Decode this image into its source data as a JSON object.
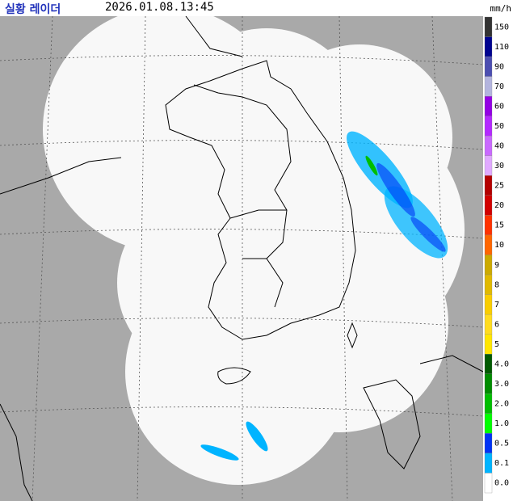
{
  "header": {
    "title": "실황 레이더",
    "time": "2026.01.08.13:45",
    "unit": "mm/h"
  },
  "legend": [
    {
      "label": "150",
      "color": "#333333"
    },
    {
      "label": "110",
      "color": "#000390"
    },
    {
      "label": "90",
      "color": "#4c4eb1"
    },
    {
      "label": "70",
      "color": "#b3b4de"
    },
    {
      "label": "60",
      "color": "#9300e4"
    },
    {
      "label": "50",
      "color": "#b329ff"
    },
    {
      "label": "40",
      "color": "#c969ff"
    },
    {
      "label": "30",
      "color": "#e0a9ff"
    },
    {
      "label": "25",
      "color": "#b40000"
    },
    {
      "label": "20",
      "color": "#d20000"
    },
    {
      "label": "15",
      "color": "#ff3200"
    },
    {
      "label": "10",
      "color": "#ff6600"
    },
    {
      "label": "9",
      "color": "#ccaa00"
    },
    {
      "label": "8",
      "color": "#e0b900"
    },
    {
      "label": "7",
      "color": "#f9cd00"
    },
    {
      "label": "6",
      "color": "#ffdc1f"
    },
    {
      "label": "5",
      "color": "#ffe600"
    },
    {
      "label": "4.0",
      "color": "#005a00"
    },
    {
      "label": "3.0",
      "color": "#008c00"
    },
    {
      "label": "2.0",
      "color": "#00be00"
    },
    {
      "label": "1.0",
      "color": "#00ff00"
    },
    {
      "label": "0.5",
      "color": "#0033f5"
    },
    {
      "label": "0.1",
      "color": "#00b4ff"
    },
    {
      "label": "0.0",
      "color": "#ffffff"
    }
  ]
}
